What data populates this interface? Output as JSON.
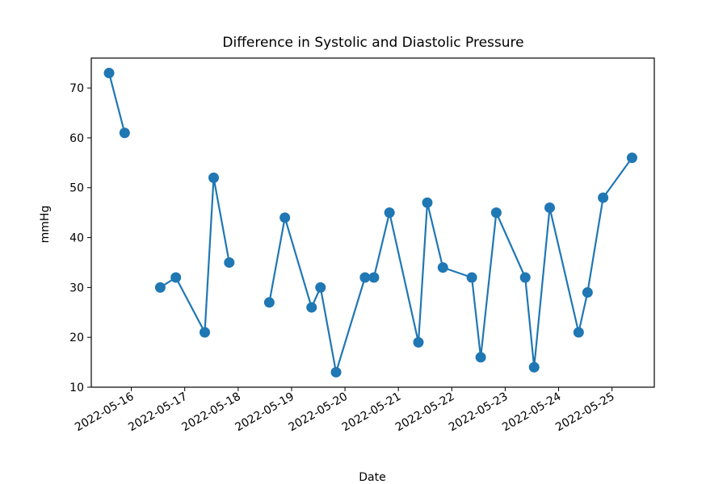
{
  "chart_data": {
    "type": "line",
    "title": "Difference in Systolic and Diastolic Pressure",
    "xlabel": "Date",
    "ylabel": "mmHg",
    "ylim": [
      10,
      76
    ],
    "xlim": [
      "2022-05-15T06:00",
      "2022-05-25T19:00"
    ],
    "yticks": [
      10,
      20,
      30,
      40,
      50,
      60,
      70
    ],
    "xticks": [
      "2022-05-16",
      "2022-05-17",
      "2022-05-18",
      "2022-05-19",
      "2022-05-20",
      "2022-05-21",
      "2022-05-22",
      "2022-05-23",
      "2022-05-24",
      "2022-05-25"
    ],
    "grid": false,
    "legend": "none",
    "color": "#1f77b4",
    "series": [
      {
        "segments": [
          [
            {
              "x": "2022-05-15T14:00",
              "y": 73
            },
            {
              "x": "2022-05-15T21:00",
              "y": 61
            }
          ],
          [
            {
              "x": "2022-05-16T13:00",
              "y": 30
            },
            {
              "x": "2022-05-16T20:00",
              "y": 32
            },
            {
              "x": "2022-05-17T09:00",
              "y": 21
            },
            {
              "x": "2022-05-17T13:00",
              "y": 52
            },
            {
              "x": "2022-05-17T20:00",
              "y": 35
            }
          ],
          [
            {
              "x": "2022-05-18T14:00",
              "y": 27
            },
            {
              "x": "2022-05-18T21:00",
              "y": 44
            },
            {
              "x": "2022-05-19T09:00",
              "y": 26
            },
            {
              "x": "2022-05-19T13:00",
              "y": 30
            },
            {
              "x": "2022-05-19T20:00",
              "y": 13
            },
            {
              "x": "2022-05-20T09:00",
              "y": 32
            },
            {
              "x": "2022-05-20T13:00",
              "y": 32
            },
            {
              "x": "2022-05-20T20:00",
              "y": 45
            },
            {
              "x": "2022-05-21T09:00",
              "y": 19
            },
            {
              "x": "2022-05-21T13:00",
              "y": 47
            },
            {
              "x": "2022-05-21T20:00",
              "y": 34
            },
            {
              "x": "2022-05-22T09:00",
              "y": 32
            },
            {
              "x": "2022-05-22T13:00",
              "y": 16
            },
            {
              "x": "2022-05-22T20:00",
              "y": 45
            },
            {
              "x": "2022-05-23T09:00",
              "y": 32
            },
            {
              "x": "2022-05-23T13:00",
              "y": 14
            },
            {
              "x": "2022-05-23T20:00",
              "y": 46
            },
            {
              "x": "2022-05-24T09:00",
              "y": 21
            },
            {
              "x": "2022-05-24T13:00",
              "y": 29
            },
            {
              "x": "2022-05-24T20:00",
              "y": 48
            },
            {
              "x": "2022-05-25T09:00",
              "y": 56
            }
          ]
        ]
      }
    ]
  }
}
